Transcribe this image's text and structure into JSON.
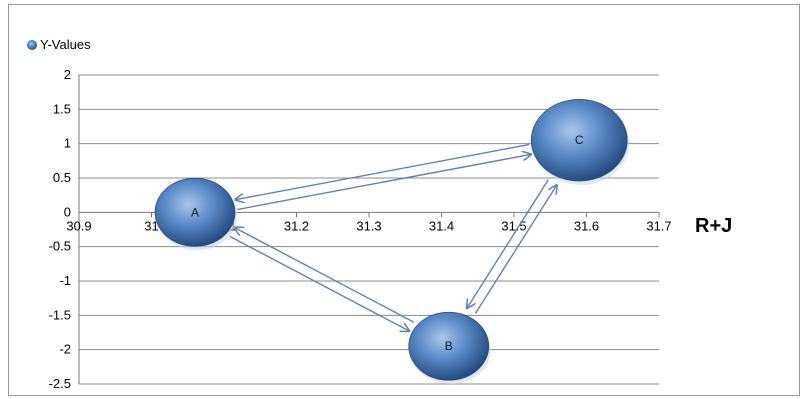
{
  "chart_data": {
    "type": "bubble",
    "legend": {
      "label": "Y-Values",
      "position": "top-left"
    },
    "xlabel": "R+J",
    "ylabel": "",
    "xlim": [
      30.9,
      31.7
    ],
    "ylim": [
      -2.5,
      2
    ],
    "x_ticks": [
      "30.9",
      "31",
      "31.1",
      "31.2",
      "31.3",
      "31.4",
      "31.5",
      "31.6",
      "31.7"
    ],
    "y_ticks": [
      "2",
      "1.5",
      "1",
      "0.5",
      "0",
      "-0.5",
      "-1",
      "-1.5",
      "-2",
      "-2.5"
    ],
    "grid": "horizontal",
    "series": [
      {
        "name": "Y-Values",
        "points": [
          {
            "label": "A",
            "x": 31.06,
            "y": 0.0,
            "size": 1.0
          },
          {
            "label": "B",
            "x": 31.41,
            "y": -1.95,
            "size": 1.0
          },
          {
            "label": "C",
            "x": 31.59,
            "y": 1.05,
            "size": 1.2
          }
        ]
      }
    ],
    "arrows": [
      {
        "from": "A",
        "to": "C"
      },
      {
        "from": "C",
        "to": "A"
      },
      {
        "from": "A",
        "to": "B"
      },
      {
        "from": "B",
        "to": "A"
      },
      {
        "from": "B",
        "to": "C"
      },
      {
        "from": "C",
        "to": "B"
      }
    ],
    "colors": {
      "bubble": "#3f6ea8",
      "arrow": "#5b84b8",
      "grid": "#8c8c8c"
    }
  }
}
